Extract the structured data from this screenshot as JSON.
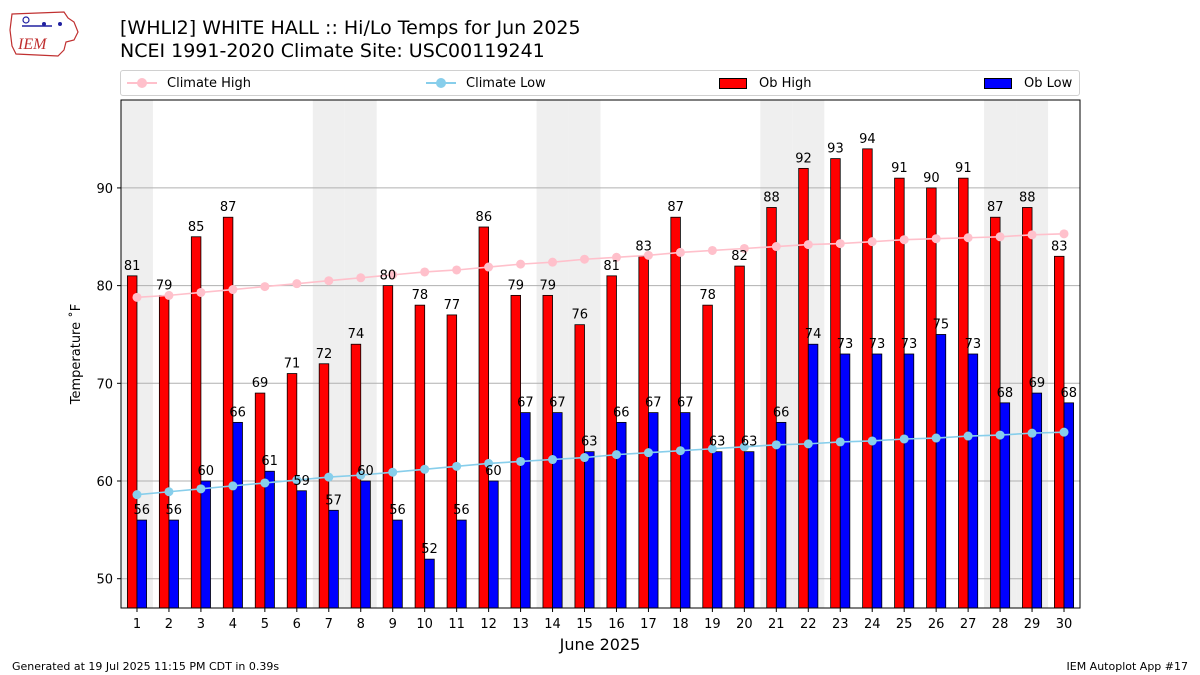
{
  "logo": {
    "text": "IEM"
  },
  "header": {
    "title_line1": "[WHLI2] WHITE HALL :: Hi/Lo Temps for Jun 2025",
    "title_line2": "NCEI 1991-2020 Climate Site: USC00119241"
  },
  "legend": {
    "climate_high": "Climate High",
    "climate_low": "Climate Low",
    "ob_high": "Ob High",
    "ob_low": "Ob Low"
  },
  "colors": {
    "ob_high": "#ff0000",
    "ob_low": "#0000ff",
    "climate_high": "#ffc0cb",
    "climate_low": "#87ceeb",
    "weekend_shade": "#efefef"
  },
  "chart_data": {
    "type": "bar",
    "xlabel": "June 2025",
    "ylabel": "Temperature ˚F",
    "ylim": [
      47,
      99
    ],
    "yticks": [
      50,
      60,
      70,
      80,
      90
    ],
    "grid": "horizontal",
    "legend_placement": "top",
    "categories": [
      "1",
      "2",
      "3",
      "4",
      "5",
      "6",
      "7",
      "8",
      "9",
      "10",
      "11",
      "12",
      "13",
      "14",
      "15",
      "16",
      "17",
      "18",
      "19",
      "20",
      "21",
      "22",
      "23",
      "24",
      "25",
      "26",
      "27",
      "28",
      "29",
      "30"
    ],
    "shaded_days": [
      1,
      7,
      8,
      14,
      15,
      21,
      22,
      28,
      29
    ],
    "series": [
      {
        "name": "Ob High",
        "type": "bar",
        "values": [
          81,
          79,
          85,
          87,
          69,
          71,
          72,
          74,
          80,
          78,
          77,
          86,
          79,
          79,
          76,
          81,
          83,
          87,
          78,
          82,
          88,
          92,
          93,
          94,
          91,
          90,
          91,
          87,
          88,
          83
        ]
      },
      {
        "name": "Ob Low",
        "type": "bar",
        "values": [
          56,
          56,
          60,
          66,
          61,
          59,
          57,
          60,
          56,
          52,
          56,
          60,
          67,
          67,
          63,
          66,
          67,
          67,
          63,
          63,
          66,
          74,
          73,
          73,
          73,
          75,
          73,
          68,
          69,
          68
        ]
      },
      {
        "name": "Climate High",
        "type": "line",
        "values": [
          78.8,
          79.0,
          79.3,
          79.6,
          79.9,
          80.2,
          80.5,
          80.8,
          81.1,
          81.4,
          81.6,
          81.9,
          82.2,
          82.4,
          82.7,
          82.9,
          83.1,
          83.4,
          83.6,
          83.8,
          84.0,
          84.2,
          84.3,
          84.5,
          84.7,
          84.8,
          84.9,
          85.0,
          85.2,
          85.3
        ]
      },
      {
        "name": "Climate Low",
        "type": "line",
        "values": [
          58.6,
          58.9,
          59.2,
          59.5,
          59.8,
          60.1,
          60.4,
          60.6,
          60.9,
          61.2,
          61.5,
          61.8,
          62.0,
          62.2,
          62.4,
          62.7,
          62.9,
          63.1,
          63.3,
          63.5,
          63.7,
          63.8,
          64.0,
          64.1,
          64.3,
          64.4,
          64.6,
          64.7,
          64.9,
          65.0
        ]
      }
    ]
  },
  "footer": {
    "left": "Generated at 19 Jul 2025 11:15 PM CDT in 0.39s",
    "right": "IEM Autoplot App #17"
  }
}
